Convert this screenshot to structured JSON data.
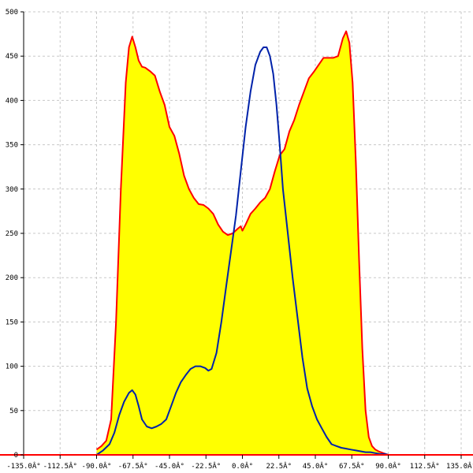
{
  "chart_data": {
    "type": "area",
    "title": "",
    "xlabel": "",
    "ylabel": "",
    "xlim": [
      -135,
      135
    ],
    "ylim": [
      0,
      500
    ],
    "grid": true,
    "colors": {
      "area_fill": "#ffff00",
      "area_line": "#ff0000",
      "curve_line": "#0022aa",
      "grid": "#c8c8c8",
      "axis": "#000000",
      "baseline": "#ff0000"
    },
    "x_ticks": [
      {
        "value": -135,
        "label": "-135.0Â°"
      },
      {
        "value": -112.5,
        "label": "-112.5Â°"
      },
      {
        "value": -90,
        "label": "-90.0Â°"
      },
      {
        "value": -67.5,
        "label": "-67.5Â°"
      },
      {
        "value": -45,
        "label": "-45.0Â°"
      },
      {
        "value": -22.5,
        "label": "-22.5Â°"
      },
      {
        "value": 0,
        "label": "0.0Â°"
      },
      {
        "value": 22.5,
        "label": "22.5Â°"
      },
      {
        "value": 45,
        "label": "45.0Â°"
      },
      {
        "value": 67.5,
        "label": "67.5Â°"
      },
      {
        "value": 90,
        "label": "90.0Â°"
      },
      {
        "value": 112.5,
        "label": "112.5Â°"
      },
      {
        "value": 135,
        "label": "135.0Â°"
      }
    ],
    "y_ticks": [
      {
        "value": 0,
        "label": "0"
      },
      {
        "value": 50,
        "label": "50"
      },
      {
        "value": 100,
        "label": "100"
      },
      {
        "value": 150,
        "label": "150"
      },
      {
        "value": 200,
        "label": "200"
      },
      {
        "value": 250,
        "label": "250"
      },
      {
        "value": 300,
        "label": "300"
      },
      {
        "value": 350,
        "label": "350"
      },
      {
        "value": 400,
        "label": "400"
      },
      {
        "value": 450,
        "label": "450"
      },
      {
        "value": 500,
        "label": "500"
      }
    ],
    "series": [
      {
        "style": "area",
        "x": [
          -90,
          -87,
          -84,
          -81,
          -78,
          -75,
          -72,
          -70,
          -68,
          -66,
          -64,
          -62,
          -60,
          -57,
          -54,
          -51,
          -48,
          -45,
          -42,
          -39,
          -36,
          -33,
          -30,
          -27,
          -24,
          -21,
          -18,
          -15,
          -12,
          -9,
          -6,
          -3,
          -1,
          0,
          2,
          5,
          8,
          11,
          14,
          17,
          20,
          23,
          26,
          29,
          32,
          35,
          38,
          41,
          44,
          47,
          50,
          53,
          56,
          59,
          62,
          64,
          66,
          68,
          70,
          72,
          74,
          76,
          78,
          80,
          82,
          84,
          87,
          90
        ],
        "y": [
          6,
          10,
          16,
          40,
          150,
          300,
          420,
          460,
          472,
          460,
          445,
          438,
          437,
          433,
          428,
          410,
          395,
          370,
          360,
          340,
          315,
          300,
          290,
          283,
          282,
          278,
          272,
          260,
          252,
          248,
          250,
          255,
          258,
          253,
          260,
          272,
          278,
          285,
          290,
          300,
          320,
          338,
          345,
          365,
          378,
          395,
          410,
          425,
          432,
          440,
          448,
          448,
          448,
          450,
          470,
          478,
          465,
          420,
          330,
          220,
          120,
          50,
          20,
          10,
          6,
          4,
          2,
          0
        ]
      },
      {
        "style": "line",
        "x": [
          -90,
          -86,
          -82,
          -79,
          -76,
          -73,
          -70,
          -68,
          -66,
          -64,
          -62,
          -59,
          -56,
          -53,
          -50,
          -47,
          -44,
          -41,
          -38,
          -35,
          -32,
          -29,
          -26,
          -23,
          -21,
          -19,
          -16,
          -13,
          -10,
          -7,
          -4,
          -1,
          2,
          5,
          8,
          11,
          13,
          15,
          17,
          19,
          21,
          23,
          25,
          28,
          31,
          34,
          37,
          40,
          43,
          46,
          49,
          52,
          55,
          58,
          61,
          64,
          67,
          70,
          73,
          76,
          79,
          82,
          85,
          88,
          90
        ],
        "y": [
          0,
          5,
          12,
          25,
          45,
          60,
          70,
          73,
          68,
          55,
          40,
          32,
          30,
          32,
          35,
          40,
          55,
          70,
          82,
          90,
          97,
          100,
          100,
          98,
          95,
          97,
          115,
          150,
          190,
          230,
          270,
          320,
          370,
          410,
          440,
          455,
          460,
          460,
          450,
          430,
          395,
          350,
          300,
          250,
          200,
          155,
          110,
          75,
          55,
          40,
          30,
          20,
          12,
          10,
          8,
          7,
          6,
          5,
          4,
          3,
          3,
          2,
          1,
          1,
          0
        ]
      }
    ]
  }
}
